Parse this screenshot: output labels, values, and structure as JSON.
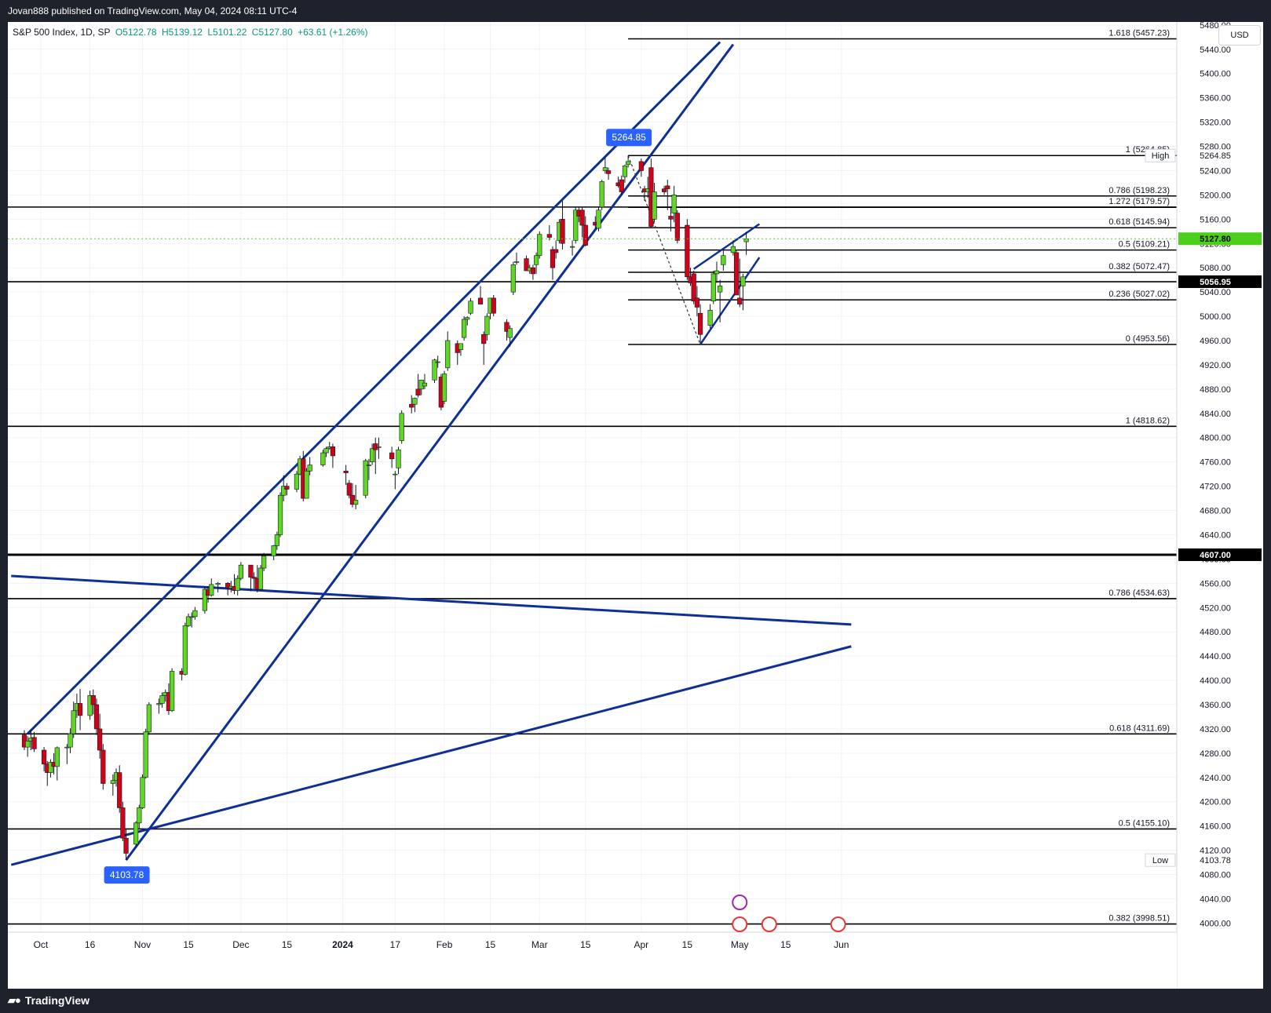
{
  "header": {
    "published_text": "Jovan888 published on TradingView.com, May 04, 2024 08:11 UTC-4"
  },
  "legend": {
    "symbol": "S&P 500 Index, 1D, SP",
    "open": "O5122.78",
    "high": "H5139.12",
    "low": "L5101.22",
    "close": "C5127.80",
    "change": "+63.61 (+1.26%)"
  },
  "currency": "USD",
  "footer": {
    "brand": "TradingView"
  },
  "colors": {
    "up": "#5ed823",
    "down": "#d0021b",
    "trendline": "#0e2f95",
    "badge": "#2962ff",
    "price_line": "#4ccf1b"
  },
  "chart_data": {
    "type": "candlestick",
    "x_axis": {
      "ticks": [
        "Oct",
        "16",
        "Nov",
        "15",
        "Dec",
        "15",
        "2024",
        "17",
        "Feb",
        "15",
        "Mar",
        "15",
        "Apr",
        "15",
        "May",
        "15",
        "Jun"
      ]
    },
    "y_axis": {
      "range": [
        3985,
        5485
      ],
      "ticks": [
        "4000.00",
        "4040.00",
        "4080.00",
        "4120.00",
        "4160.00",
        "4200.00",
        "4240.00",
        "4280.00",
        "4320.00",
        "4360.00",
        "4400.00",
        "4440.00",
        "4480.00",
        "4520.00",
        "4560.00",
        "4600.00",
        "4640.00",
        "4680.00",
        "4720.00",
        "4760.00",
        "4800.00",
        "4840.00",
        "4880.00",
        "4920.00",
        "4960.00",
        "5000.00",
        "5040.00",
        "5080.00",
        "5120.00",
        "5160.00",
        "5200.00",
        "5240.00",
        "5280.00",
        "5320.00",
        "5360.00",
        "5400.00",
        "5440.00",
        "5480.00"
      ]
    },
    "price_labels": [
      {
        "label": "5264.85",
        "value": 5264.85,
        "tag": "High"
      },
      {
        "label": "5127.80",
        "value": 5127.8,
        "tag": "current"
      },
      {
        "label": "5056.95",
        "value": 5056.95,
        "tag": "level"
      },
      {
        "label": "4607.00",
        "value": 4607.0,
        "tag": "level"
      },
      {
        "label": "4103.78",
        "value": 4103.78,
        "tag": "Low"
      }
    ],
    "horizontal_levels": [
      5180,
      5056.95,
      4818.62,
      4607.0,
      4534.63,
      4311.69,
      4155.1,
      3998.51
    ],
    "fib_retracement": [
      {
        "label": "1.618 (5457.23)",
        "value": 5457.23
      },
      {
        "label": "1 (5264.85)",
        "value": 5264.85
      },
      {
        "label": "0.786 (5198.23)",
        "value": 5198.23
      },
      {
        "label": "1.272 (5179.57)",
        "value": 5179.57
      },
      {
        "label": "0.618 (5145.94)",
        "value": 5145.94
      },
      {
        "label": "0.5 (5109.21)",
        "value": 5109.21
      },
      {
        "label": "0.382 (5072.47)",
        "value": 5072.47
      },
      {
        "label": "0.236 (5027.02)",
        "value": 5027.02
      },
      {
        "label": "0 (4953.56)",
        "value": 4953.56
      }
    ],
    "fib_extension": [
      {
        "label": "1 (4818.62)",
        "value": 4818.62
      },
      {
        "label": "0.786 (4534.63)",
        "value": 4534.63
      },
      {
        "label": "0.618 (4311.69)",
        "value": 4311.69
      },
      {
        "label": "0.5 (4155.10)",
        "value": 4155.1
      },
      {
        "label": "0.382 (3998.51)",
        "value": 3998.51
      }
    ],
    "annotations": [
      {
        "label": "5264.85",
        "date": "2024-03-28",
        "value": 5264.85
      },
      {
        "label": "4103.78",
        "date": "2023-10-27",
        "value": 4103.78
      }
    ],
    "side_labels": {
      "high": "High",
      "low": "Low"
    },
    "ohlc": [
      [
        "2023-09-26",
        4310,
        4318,
        4285,
        4290
      ],
      [
        "2023-09-27",
        4290,
        4308,
        4274,
        4300
      ],
      [
        "2023-09-28",
        4300,
        4319,
        4285,
        4305
      ],
      [
        "2023-09-29",
        4306,
        4315,
        4282,
        4287
      ],
      [
        "2023-10-02",
        4285,
        4290,
        4250,
        4262
      ],
      [
        "2023-10-03",
        4262,
        4267,
        4226,
        4248
      ],
      [
        "2023-10-04",
        4248,
        4270,
        4240,
        4265
      ],
      [
        "2023-10-05",
        4265,
        4280,
        4245,
        4258
      ],
      [
        "2023-10-06",
        4258,
        4291,
        4235,
        4289
      ],
      [
        "2023-10-09",
        4289,
        4295,
        4262,
        4290
      ],
      [
        "2023-10-10",
        4290,
        4321,
        4280,
        4312
      ],
      [
        "2023-10-11",
        4312,
        4365,
        4305,
        4350
      ],
      [
        "2023-10-12",
        4350,
        4378,
        4338,
        4362
      ],
      [
        "2023-10-13",
        4362,
        4386,
        4318,
        4342
      ],
      [
        "2023-10-16",
        4342,
        4383,
        4335,
        4375
      ],
      [
        "2023-10-17",
        4375,
        4385,
        4344,
        4360
      ],
      [
        "2023-10-18",
        4360,
        4370,
        4310,
        4320
      ],
      [
        "2023-10-19",
        4320,
        4345,
        4271,
        4285
      ],
      [
        "2023-10-20",
        4285,
        4295,
        4220,
        4230
      ],
      [
        "2023-10-23",
        4230,
        4245,
        4210,
        4235
      ],
      [
        "2023-10-24",
        4235,
        4255,
        4225,
        4248
      ],
      [
        "2023-10-25",
        4248,
        4260,
        4182,
        4190
      ],
      [
        "2023-10-26",
        4190,
        4200,
        4135,
        4140
      ],
      [
        "2023-10-27",
        4140,
        4155,
        4104,
        4115
      ],
      [
        "2023-10-30",
        4130,
        4168,
        4125,
        4165
      ],
      [
        "2023-10-31",
        4165,
        4195,
        4155,
        4190
      ],
      [
        "2023-11-01",
        4190,
        4245,
        4188,
        4240
      ],
      [
        "2023-11-02",
        4240,
        4320,
        4238,
        4315
      ],
      [
        "2023-11-03",
        4315,
        4364,
        4310,
        4360
      ],
      [
        "2023-11-06",
        4360,
        4370,
        4345,
        4362
      ],
      [
        "2023-11-07",
        4362,
        4380,
        4355,
        4375
      ],
      [
        "2023-11-08",
        4375,
        4385,
        4365,
        4380
      ],
      [
        "2023-11-09",
        4380,
        4395,
        4343,
        4350
      ],
      [
        "2023-11-10",
        4350,
        4420,
        4348,
        4415
      ],
      [
        "2023-11-13",
        4415,
        4420,
        4400,
        4410
      ],
      [
        "2023-11-14",
        4410,
        4495,
        4408,
        4490
      ],
      [
        "2023-11-15",
        4490,
        4510,
        4488,
        4505
      ],
      [
        "2023-11-16",
        4505,
        4512,
        4487,
        4505
      ],
      [
        "2023-11-17",
        4505,
        4521,
        4500,
        4515
      ],
      [
        "2023-11-20",
        4515,
        4555,
        4510,
        4550
      ],
      [
        "2023-11-21",
        4550,
        4555,
        4528,
        4540
      ],
      [
        "2023-11-22",
        4540,
        4568,
        4538,
        4558
      ],
      [
        "2023-11-24",
        4558,
        4562,
        4545,
        4560
      ],
      [
        "2023-11-27",
        4560,
        4562,
        4540,
        4552
      ],
      [
        "2023-11-28",
        4552,
        4564,
        4545,
        4555
      ],
      [
        "2023-11-29",
        4555,
        4575,
        4542,
        4548
      ],
      [
        "2023-11-30",
        4548,
        4573,
        4540,
        4568
      ],
      [
        "2023-12-01",
        4568,
        4595,
        4565,
        4590
      ],
      [
        "2023-12-04",
        4590,
        4590,
        4547,
        4570
      ],
      [
        "2023-12-05",
        4570,
        4578,
        4551,
        4568
      ],
      [
        "2023-12-06",
        4568,
        4590,
        4545,
        4550
      ],
      [
        "2023-12-07",
        4550,
        4590,
        4548,
        4585
      ],
      [
        "2023-12-08",
        4585,
        4610,
        4580,
        4605
      ],
      [
        "2023-12-11",
        4605,
        4623,
        4598,
        4622
      ],
      [
        "2023-12-12",
        4622,
        4645,
        4615,
        4640
      ],
      [
        "2023-12-13",
        4640,
        4710,
        4636,
        4705
      ],
      [
        "2023-12-14",
        4705,
        4738,
        4695,
        4720
      ],
      [
        "2023-12-15",
        4720,
        4725,
        4705,
        4715
      ],
      [
        "2023-12-18",
        4715,
        4745,
        4710,
        4740
      ],
      [
        "2023-12-19",
        4740,
        4770,
        4738,
        4765
      ],
      [
        "2023-12-20",
        4765,
        4778,
        4695,
        4700
      ],
      [
        "2023-12-21",
        4700,
        4750,
        4700,
        4745
      ],
      [
        "2023-12-22",
        4745,
        4768,
        4738,
        4755
      ],
      [
        "2023-12-26",
        4755,
        4780,
        4752,
        4775
      ],
      [
        "2023-12-27",
        4775,
        4785,
        4768,
        4782
      ],
      [
        "2023-12-28",
        4782,
        4793,
        4780,
        4785
      ],
      [
        "2023-12-29",
        4785,
        4790,
        4750,
        4770
      ],
      [
        "2024-01-02",
        4745,
        4755,
        4722,
        4742
      ],
      [
        "2024-01-03",
        4725,
        4730,
        4700,
        4705
      ],
      [
        "2024-01-04",
        4705,
        4725,
        4685,
        4690
      ],
      [
        "2024-01-05",
        4690,
        4722,
        4682,
        4697
      ],
      [
        "2024-01-08",
        4705,
        4765,
        4700,
        4762
      ],
      [
        "2024-01-09",
        4755,
        4765,
        4730,
        4755
      ],
      [
        "2024-01-10",
        4760,
        4790,
        4755,
        4782
      ],
      [
        "2024-01-11",
        4790,
        4800,
        4740,
        4780
      ],
      [
        "2024-01-12",
        4785,
        4800,
        4765,
        4785
      ],
      [
        "2024-01-16",
        4775,
        4785,
        4750,
        4765
      ],
      [
        "2024-01-17",
        4740,
        4745,
        4715,
        4740
      ],
      [
        "2024-01-18",
        4750,
        4785,
        4740,
        4780
      ],
      [
        "2024-01-19",
        4795,
        4845,
        4790,
        4840
      ],
      [
        "2024-01-22",
        4855,
        4870,
        4840,
        4850
      ],
      [
        "2024-01-23",
        4855,
        4866,
        4842,
        4865
      ],
      [
        "2024-01-24",
        4880,
        4905,
        4866,
        4870
      ],
      [
        "2024-01-25",
        4880,
        4895,
        4870,
        4895
      ],
      [
        "2024-01-26",
        4885,
        4905,
        4880,
        4890
      ],
      [
        "2024-01-29",
        4895,
        4930,
        4890,
        4928
      ],
      [
        "2024-01-30",
        4925,
        4935,
        4915,
        4925
      ],
      [
        "2024-01-31",
        4900,
        4905,
        4845,
        4850
      ],
      [
        "2024-02-01",
        4860,
        4910,
        4855,
        4905
      ],
      [
        "2024-02-02",
        4915,
        4975,
        4910,
        4960
      ],
      [
        "2024-02-05",
        4955,
        4960,
        4920,
        4940
      ],
      [
        "2024-02-06",
        4945,
        4955,
        4935,
        4955
      ],
      [
        "2024-02-07",
        4965,
        5000,
        4960,
        4995
      ],
      [
        "2024-02-08",
        4995,
        5000,
        4985,
        4998
      ],
      [
        "2024-02-09",
        5005,
        5030,
        5002,
        5025
      ],
      [
        "2024-02-12",
        5030,
        5050,
        5020,
        5020
      ],
      [
        "2024-02-13",
        4970,
        4975,
        4920,
        4955
      ],
      [
        "2024-02-14",
        4970,
        5005,
        4960,
        5000
      ],
      [
        "2024-02-15",
        5005,
        5030,
        4995,
        5030
      ],
      [
        "2024-02-16",
        5030,
        5035,
        5000,
        5005
      ],
      [
        "2024-02-20",
        4990,
        4995,
        4960,
        4975
      ],
      [
        "2024-02-21",
        4965,
        4985,
        4950,
        4980
      ],
      [
        "2024-02-22",
        5040,
        5090,
        5035,
        5085
      ],
      [
        "2024-02-23",
        5090,
        5105,
        5085,
        5090
      ],
      [
        "2024-02-26",
        5095,
        5100,
        5075,
        5075
      ],
      [
        "2024-02-27",
        5075,
        5085,
        5070,
        5080
      ],
      [
        "2024-02-28",
        5080,
        5085,
        5060,
        5070
      ],
      [
        "2024-02-29",
        5085,
        5105,
        5070,
        5100
      ],
      [
        "2024-03-01",
        5100,
        5140,
        5095,
        5135
      ],
      [
        "2024-03-04",
        5135,
        5150,
        5125,
        5130
      ],
      [
        "2024-03-05",
        5110,
        5115,
        5060,
        5080
      ],
      [
        "2024-03-06",
        5110,
        5125,
        5095,
        5105
      ],
      [
        "2024-03-07",
        5125,
        5160,
        5120,
        5155
      ],
      [
        "2024-03-08",
        5160,
        5190,
        5110,
        5120
      ],
      [
        "2024-03-11",
        5115,
        5125,
        5100,
        5115
      ],
      [
        "2024-03-12",
        5125,
        5180,
        5120,
        5175
      ],
      [
        "2024-03-13",
        5175,
        5180,
        5155,
        5165
      ],
      [
        "2024-03-14",
        5175,
        5180,
        5130,
        5150
      ],
      [
        "2024-03-15",
        5150,
        5165,
        5115,
        5117
      ],
      [
        "2024-03-18",
        5155,
        5165,
        5145,
        5150
      ],
      [
        "2024-03-19",
        5145,
        5180,
        5140,
        5175
      ],
      [
        "2024-03-20",
        5180,
        5225,
        5175,
        5222
      ],
      [
        "2024-03-21",
        5240,
        5262,
        5235,
        5245
      ],
      [
        "2024-03-22",
        5240,
        5245,
        5225,
        5235
      ],
      [
        "2024-03-25",
        5220,
        5230,
        5212,
        5215
      ],
      [
        "2024-03-26",
        5225,
        5232,
        5200,
        5205
      ],
      [
        "2024-03-27",
        5230,
        5250,
        5220,
        5248
      ],
      [
        "2024-03-28",
        5250,
        5265,
        5245,
        5255
      ],
      [
        "2024-04-01",
        5255,
        5260,
        5230,
        5240
      ],
      [
        "2024-04-02",
        5210,
        5215,
        5190,
        5205
      ],
      [
        "2024-04-03",
        5205,
        5230,
        5195,
        5210
      ],
      [
        "2024-04-04",
        5245,
        5260,
        5145,
        5148
      ],
      [
        "2024-04-05",
        5160,
        5220,
        5155,
        5205
      ],
      [
        "2024-04-08",
        5210,
        5215,
        5200,
        5205
      ],
      [
        "2024-04-09",
        5215,
        5225,
        5175,
        5210
      ],
      [
        "2024-04-10",
        5165,
        5180,
        5140,
        5160
      ],
      [
        "2024-04-11",
        5170,
        5215,
        5155,
        5200
      ],
      [
        "2024-04-12",
        5170,
        5175,
        5120,
        5125
      ],
      [
        "2024-04-15",
        5150,
        5160,
        5060,
        5065
      ],
      [
        "2024-04-16",
        5065,
        5080,
        5050,
        5055
      ],
      [
        "2024-04-17",
        5070,
        5075,
        5020,
        5025
      ],
      [
        "2024-04-18",
        5030,
        5050,
        5000,
        5015
      ],
      [
        "2024-04-19",
        5005,
        5020,
        4955,
        4970
      ],
      [
        "2024-04-22",
        4985,
        5020,
        4980,
        5010
      ],
      [
        "2024-04-23",
        5025,
        5075,
        5020,
        5070
      ],
      [
        "2024-04-24",
        5070,
        5090,
        5055,
        5075
      ],
      [
        "2024-04-25",
        5040,
        5060,
        4990,
        5050
      ],
      [
        "2024-04-26",
        5085,
        5110,
        5075,
        5100
      ],
      [
        "2024-04-29",
        5105,
        5125,
        5100,
        5115
      ],
      [
        "2024-04-30",
        5105,
        5110,
        5035,
        5035
      ],
      [
        "2024-05-01",
        5030,
        5095,
        5015,
        5020
      ],
      [
        "2024-05-02",
        5050,
        5070,
        5010,
        5065
      ],
      [
        "2024-05-03",
        5122.78,
        5139.12,
        5101.22,
        5127.8
      ]
    ]
  }
}
